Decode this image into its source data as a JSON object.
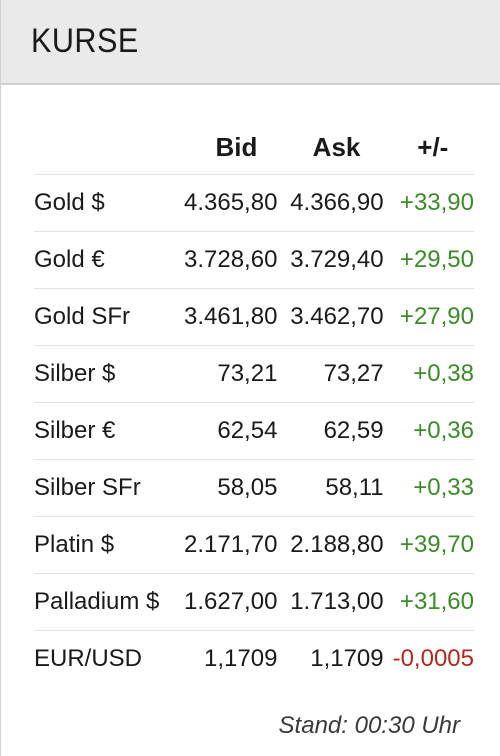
{
  "header": {
    "title": "KURSE"
  },
  "table": {
    "columns": [
      "",
      "Bid",
      "Ask",
      "+/-"
    ],
    "rows": [
      {
        "name": "Gold $",
        "bid": "4.365,80",
        "ask": "4.366,90",
        "change": "+33,90",
        "trend": "up"
      },
      {
        "name": "Gold €",
        "bid": "3.728,60",
        "ask": "3.729,40",
        "change": "+29,50",
        "trend": "up"
      },
      {
        "name": "Gold SFr",
        "bid": "3.461,80",
        "ask": "3.462,70",
        "change": "+27,90",
        "trend": "up"
      },
      {
        "name": "Silber $",
        "bid": "73,21",
        "ask": "73,27",
        "change": "+0,38",
        "trend": "up"
      },
      {
        "name": "Silber €",
        "bid": "62,54",
        "ask": "62,59",
        "change": "+0,36",
        "trend": "up"
      },
      {
        "name": "Silber SFr",
        "bid": "58,05",
        "ask": "58,11",
        "change": "+0,33",
        "trend": "up"
      },
      {
        "name": "Platin $",
        "bid": "2.171,70",
        "ask": "2.188,80",
        "change": "+39,70",
        "trend": "up"
      },
      {
        "name": "Palladium $",
        "bid": "1.627,00",
        "ask": "1.713,00",
        "change": "+31,60",
        "trend": "up"
      },
      {
        "name": "EUR/USD",
        "bid": "1,1709",
        "ask": "1,1709",
        "change": "-0,0005",
        "trend": "down"
      }
    ]
  },
  "footer": {
    "stand": "Stand: 00:30 Uhr"
  },
  "colors": {
    "positive": "#3c8a2a",
    "negative": "#b02a1e",
    "header_bg": "#eaeaea"
  }
}
